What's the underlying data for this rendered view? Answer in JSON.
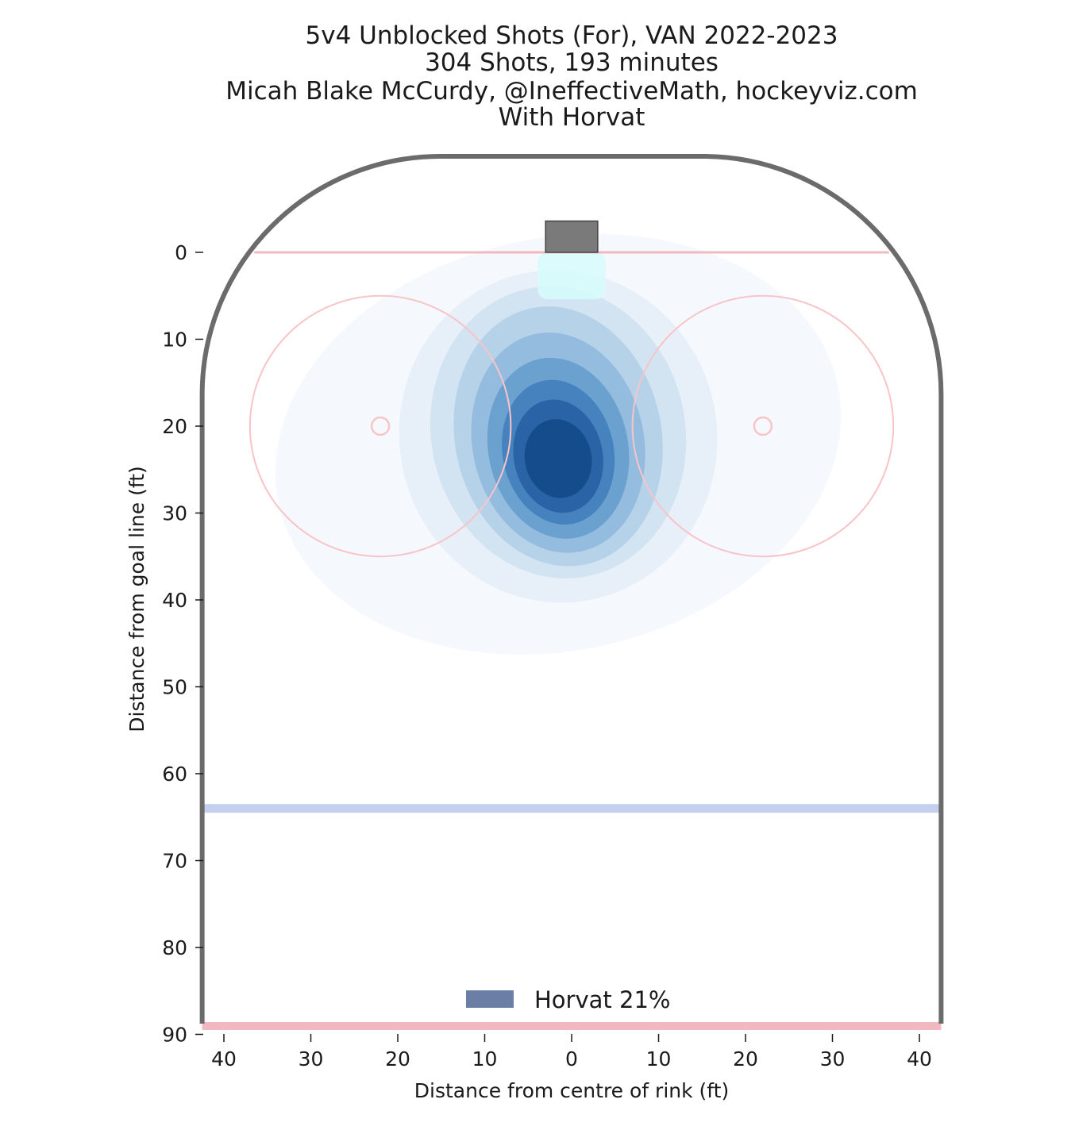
{
  "chart_data": {
    "type": "heatmap",
    "title": "5v4 Unblocked Shots (For), VAN 2022-2023",
    "subtitle": "304 Shots, 193 minutes",
    "credit": "Micah Blake McCurdy, @IneffectiveMath, hockeyviz.com",
    "filter": "With Horvat",
    "xlabel": "Distance from centre of rink (ft)",
    "ylabel": "Distance from goal line (ft)",
    "x_ticks": [
      40,
      30,
      20,
      10,
      0,
      10,
      20,
      30,
      40
    ],
    "y_ticks": [
      0,
      10,
      20,
      30,
      40,
      50,
      60,
      70,
      80,
      90
    ],
    "xlim": [
      -42.5,
      42.5
    ],
    "ylim": [
      90,
      -11
    ],
    "legend": [
      {
        "label": "Horvat 21%",
        "color": "#6b7fa6"
      }
    ],
    "shot_density_peak": {
      "x": -2,
      "y": 23
    },
    "faceoff_circles": [
      {
        "x": -22,
        "y": 20,
        "r": 15
      },
      {
        "x": 22,
        "y": 20,
        "r": 15
      }
    ],
    "blue_line_y": 64,
    "goal_line_y": 0,
    "colors": {
      "boards": "#6b6b6b",
      "goal_line": "#f2b8c0",
      "faceoff": "#f8c4c8",
      "blue_line": "#c5cfee",
      "crease": "#d6fbfc",
      "net": "#7a7a7a",
      "density": [
        "#f5f9fd",
        "#e7f0f8",
        "#d2e3f2",
        "#b6d2e9",
        "#94bcde",
        "#6aa1cf",
        "#4683be",
        "#2a64a6",
        "#154c8c"
      ]
    }
  }
}
